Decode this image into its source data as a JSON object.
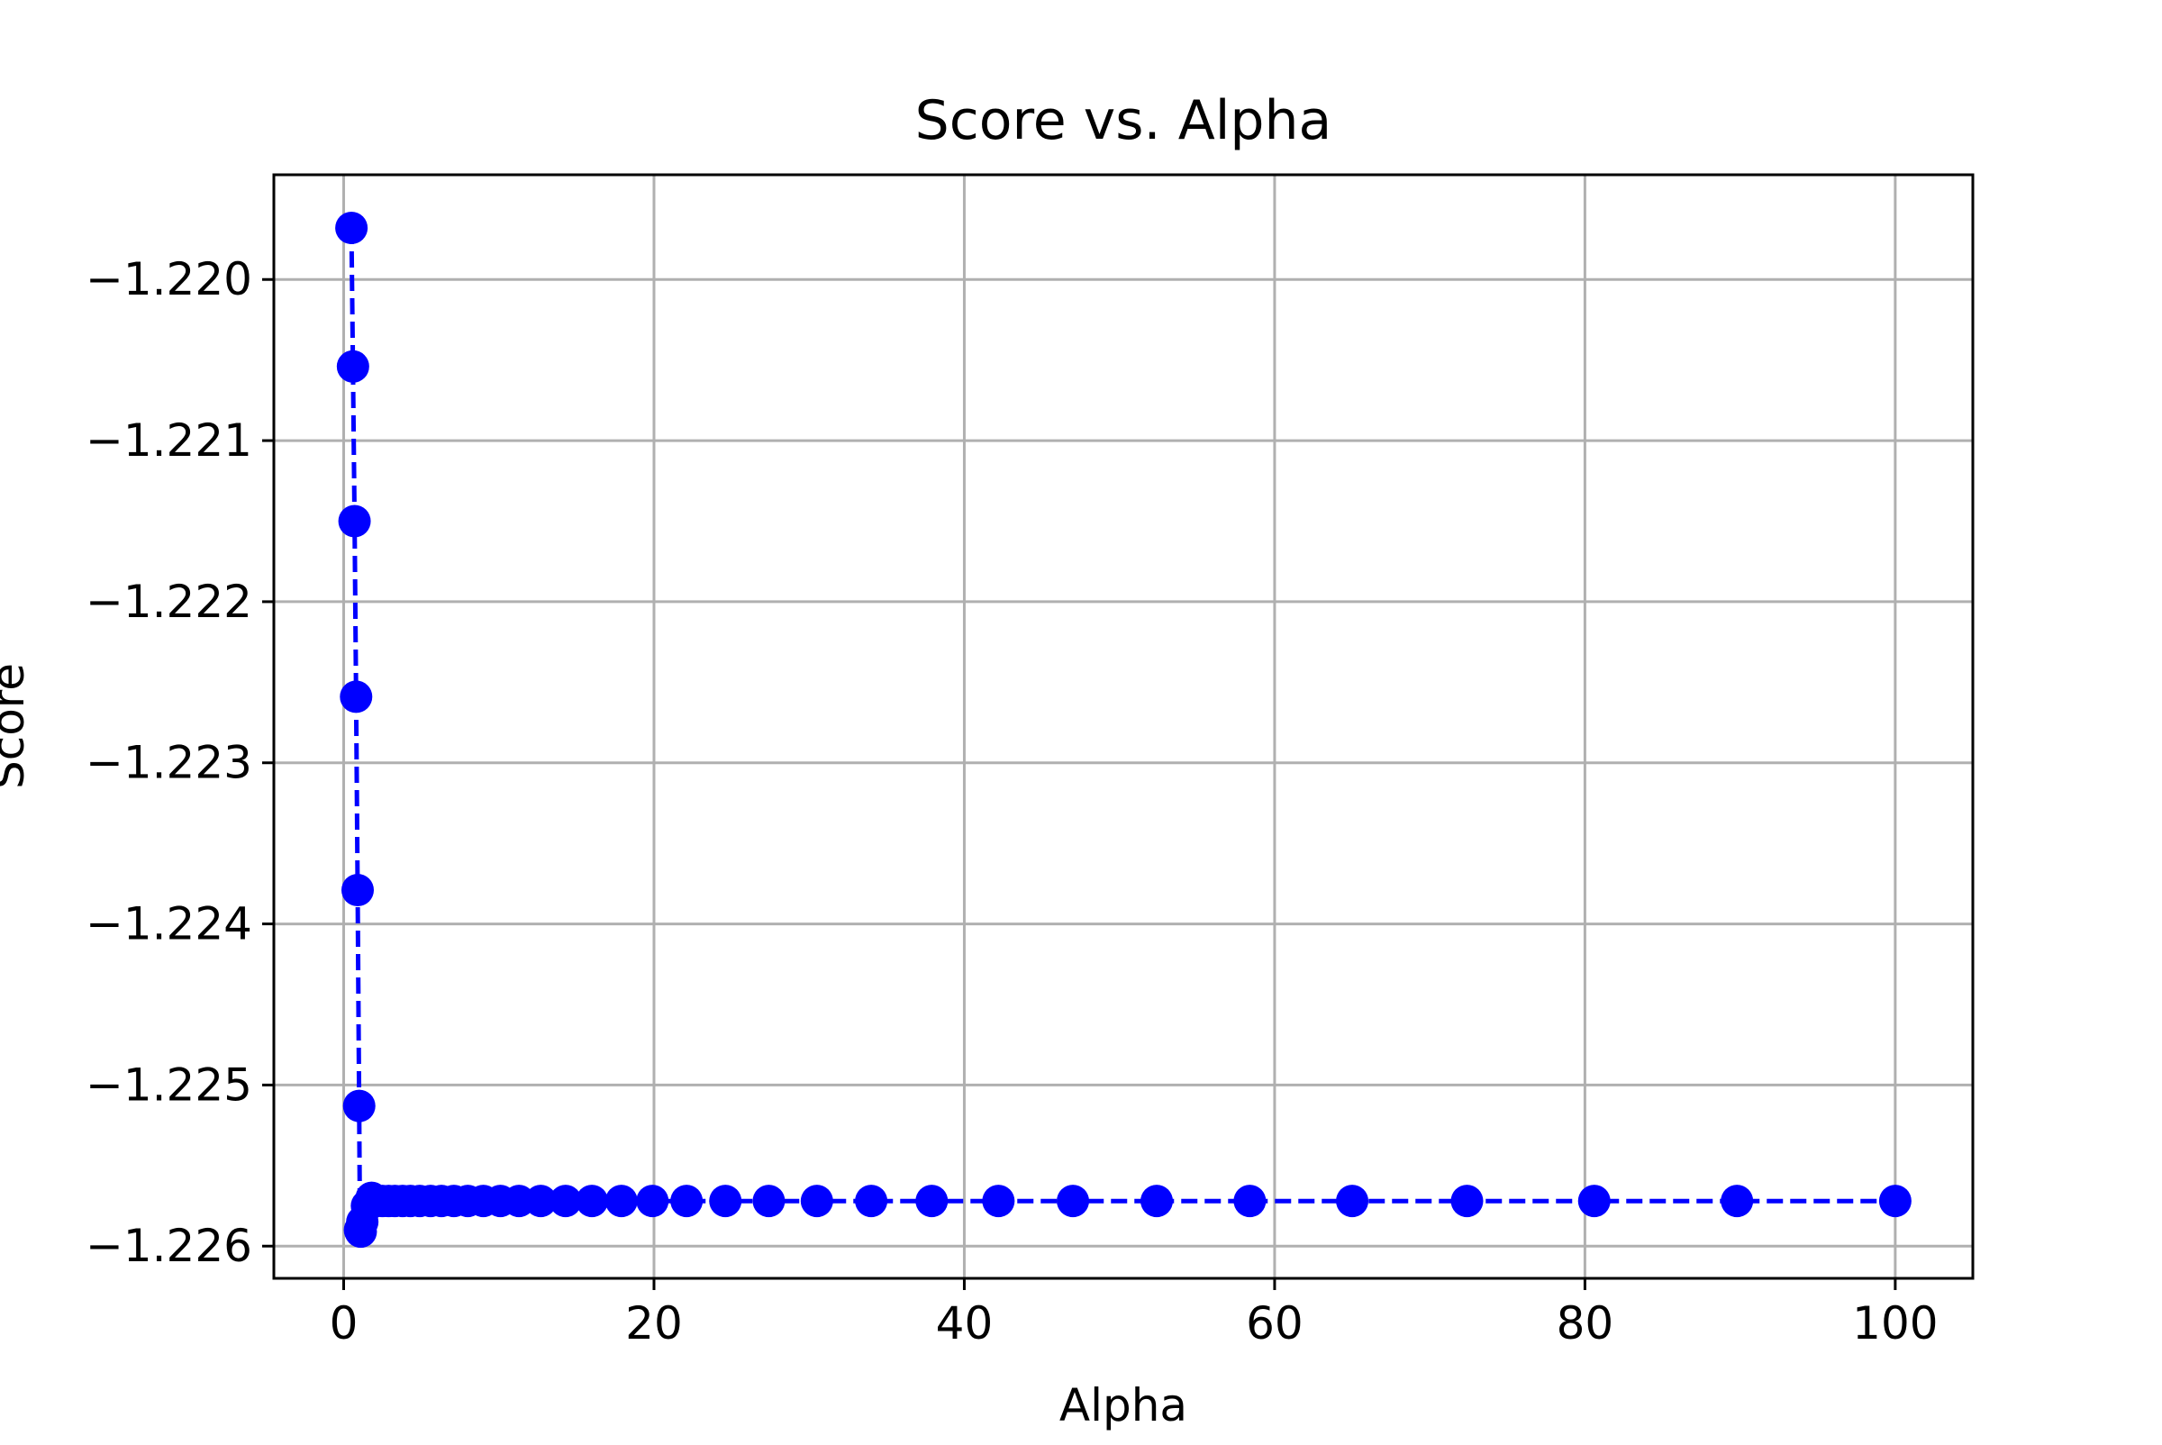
{
  "chart_data": {
    "type": "line",
    "title": "Score vs. Alpha",
    "xlabel": "Alpha",
    "ylabel": "Score",
    "xlim": [
      -4.5,
      105
    ],
    "ylim": [
      -1.2262,
      -1.21935
    ],
    "x_ticks": [
      0,
      20,
      40,
      60,
      80,
      100
    ],
    "x_tick_labels": [
      "0",
      "20",
      "40",
      "60",
      "80",
      "100"
    ],
    "y_ticks": [
      -1.226,
      -1.225,
      -1.224,
      -1.223,
      -1.222,
      -1.221,
      -1.22
    ],
    "y_tick_labels": [
      "−1.226",
      "−1.225",
      "−1.224",
      "−1.223",
      "−1.222",
      "−1.221",
      "−1.220"
    ],
    "grid": true,
    "legend": "none",
    "series": [
      {
        "color": "#0000ff",
        "line_style": "dashed",
        "marker": "circle",
        "x": [
          0.5,
          0.6,
          0.7,
          0.8,
          0.9,
          1.0,
          1.05,
          1.1,
          1.2,
          1.5,
          1.8,
          2.1,
          2.5,
          2.9,
          3.3,
          3.8,
          4.3,
          4.9,
          5.6,
          6.3,
          7.1,
          8.0,
          9.0,
          10.1,
          11.3,
          12.7,
          14.3,
          16.0,
          17.9,
          19.9,
          22.1,
          24.6,
          27.4,
          30.5,
          34.0,
          37.9,
          42.2,
          47.0,
          52.4,
          58.4,
          65.0,
          72.4,
          80.6,
          89.8,
          100.0
        ],
        "y": [
          -1.21968,
          -1.22054,
          -1.2215,
          -1.22259,
          -1.22379,
          -1.22513,
          -1.2259,
          -1.22591,
          -1.22585,
          -1.22575,
          -1.2257,
          -1.22572,
          -1.22572,
          -1.22572,
          -1.22572,
          -1.22572,
          -1.22572,
          -1.22572,
          -1.22572,
          -1.22572,
          -1.22572,
          -1.22572,
          -1.22572,
          -1.22572,
          -1.22572,
          -1.22572,
          -1.22572,
          -1.22572,
          -1.22572,
          -1.22572,
          -1.22572,
          -1.22572,
          -1.22572,
          -1.22572,
          -1.22572,
          -1.22572,
          -1.22572,
          -1.22572,
          -1.22572,
          -1.22572,
          -1.22572,
          -1.22572,
          -1.22572,
          -1.22572,
          -1.22572
        ]
      }
    ]
  }
}
